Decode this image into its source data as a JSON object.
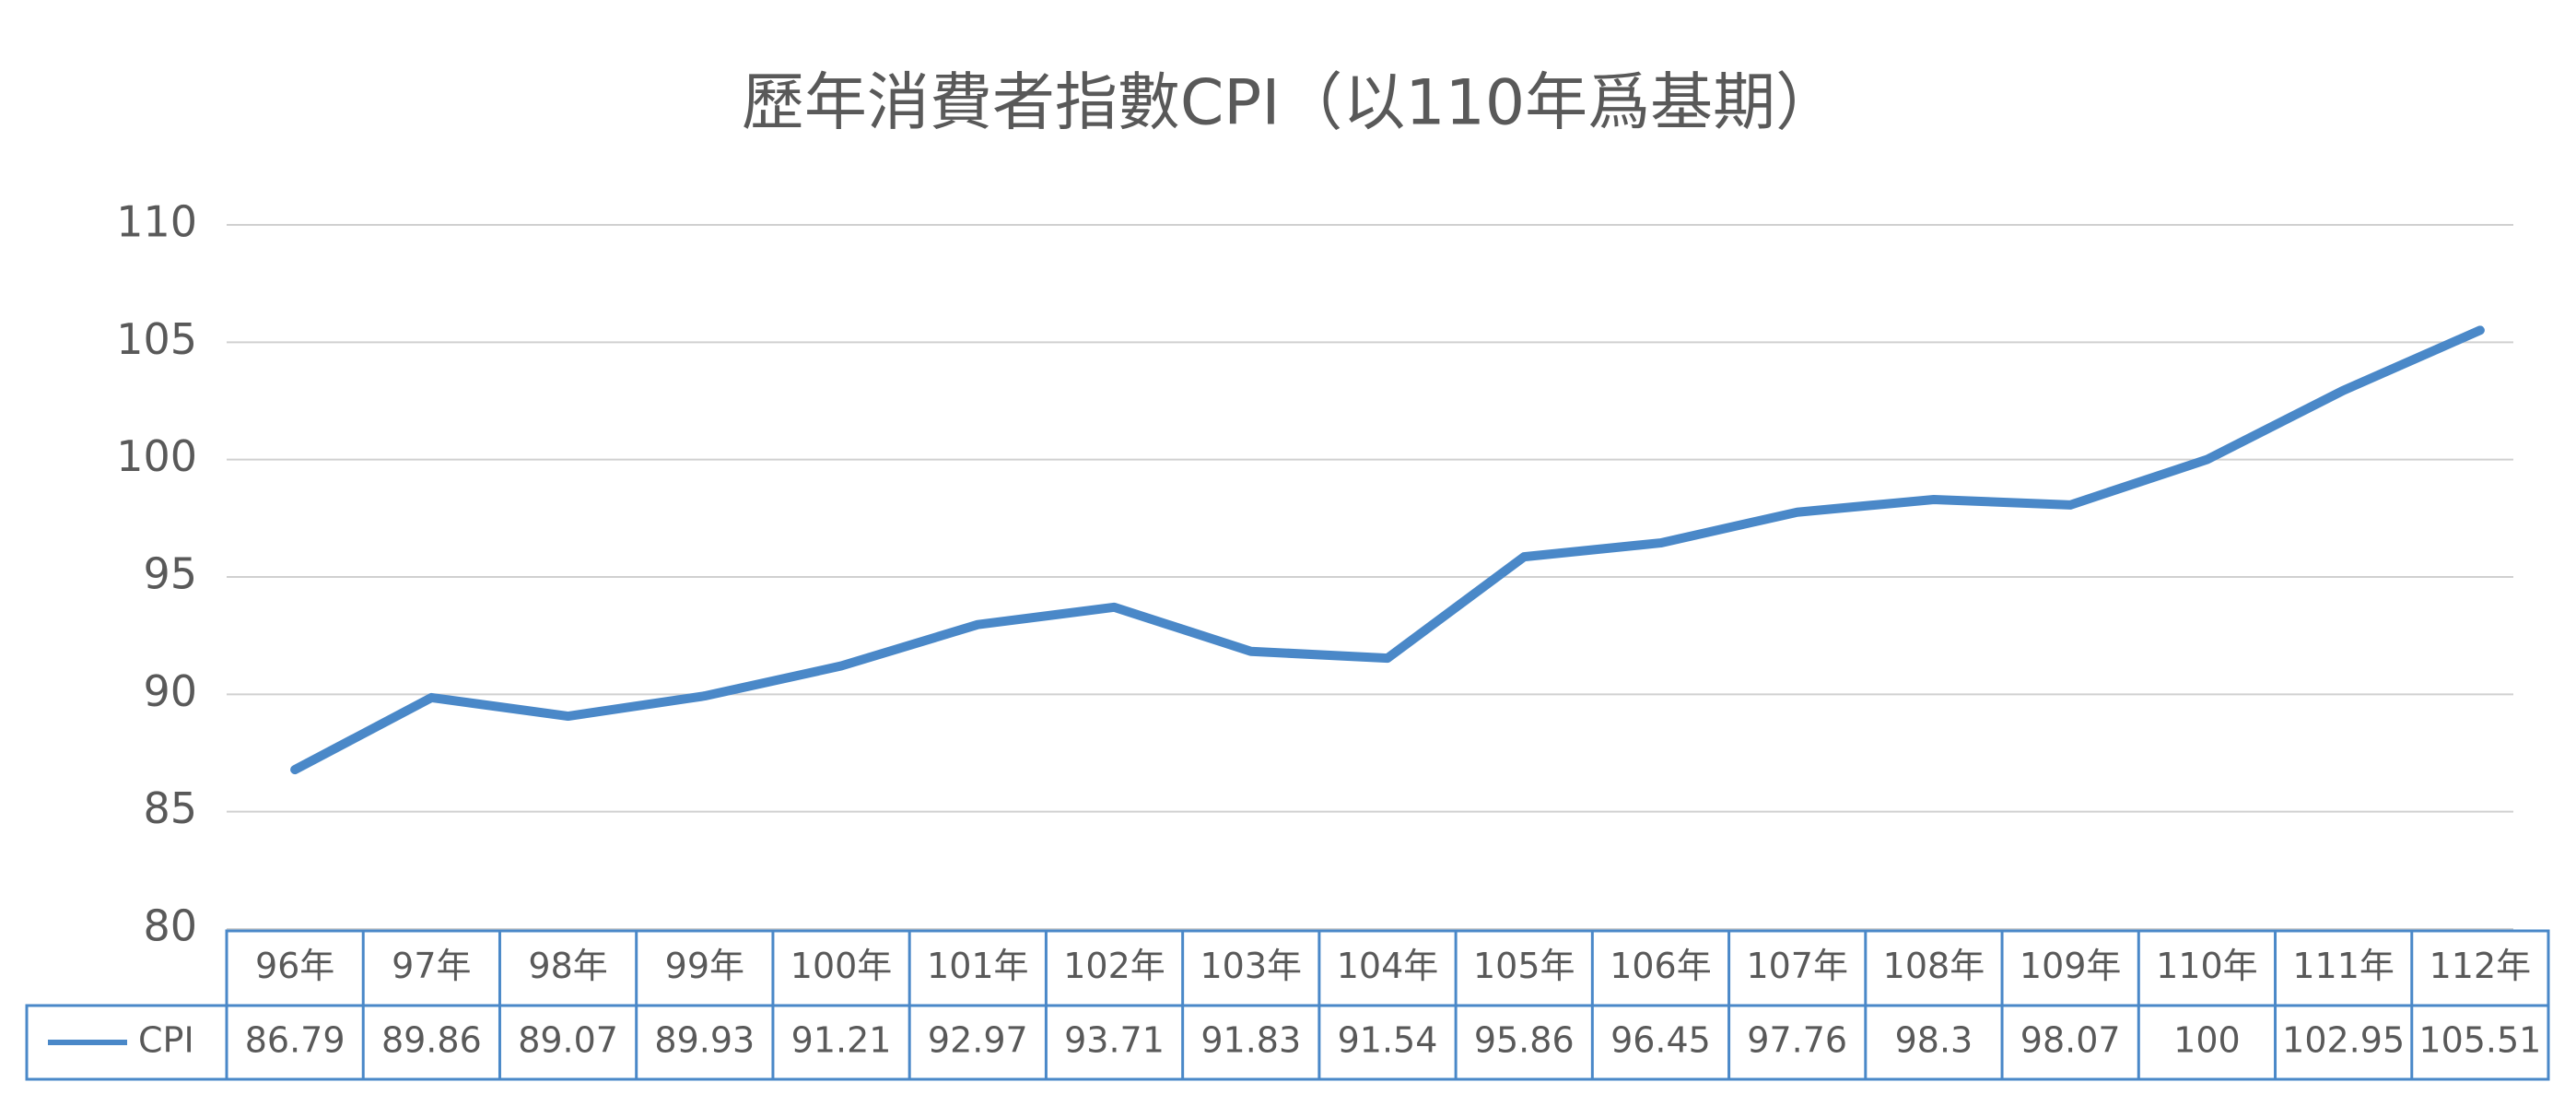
{
  "chart_data": {
    "type": "line",
    "title": "歷年消費者指數CPI（以110年爲基期）",
    "categories": [
      "96年",
      "97年",
      "98年",
      "99年",
      "100年",
      "101年",
      "102年",
      "103年",
      "104年",
      "105年",
      "106年",
      "107年",
      "108年",
      "109年",
      "110年",
      "111年",
      "112年"
    ],
    "series": [
      {
        "name": "CPI",
        "color": "#4a88c8",
        "values": [
          86.79,
          89.86,
          89.07,
          89.93,
          91.21,
          92.97,
          93.71,
          91.83,
          91.54,
          95.86,
          96.45,
          97.76,
          98.3,
          98.07,
          100,
          102.95,
          105.51
        ]
      }
    ],
    "ylim": [
      80,
      110
    ],
    "yticks": [
      80,
      85,
      90,
      95,
      100,
      105,
      110
    ],
    "grid": true
  }
}
